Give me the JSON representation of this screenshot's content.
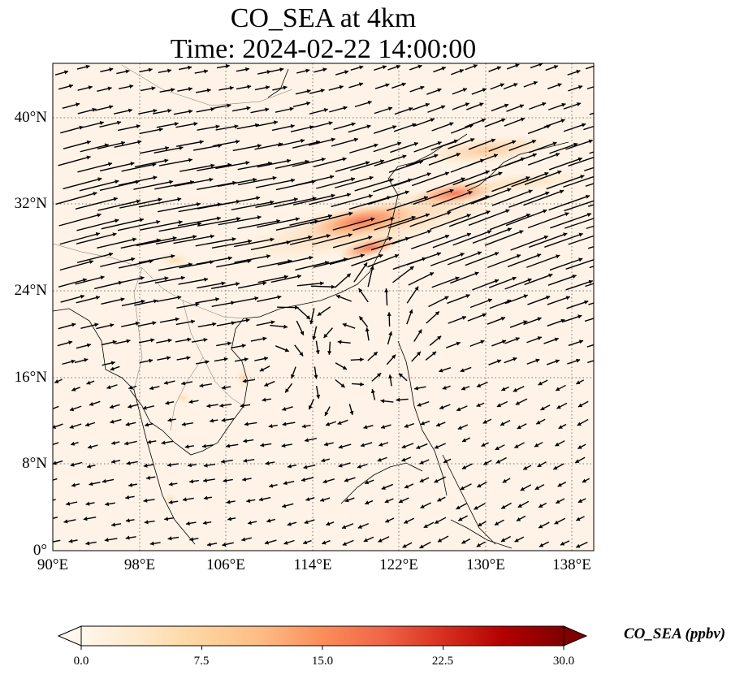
{
  "title": {
    "line1": "CO_SEA at 4km",
    "line2": "Time: 2024-02-22 14:00:00"
  },
  "axes": {
    "lon_range": [
      90,
      140
    ],
    "lat_range": [
      0,
      45
    ],
    "x_ticks": [
      "90°E",
      "98°E",
      "106°E",
      "114°E",
      "122°E",
      "130°E",
      "138°E"
    ],
    "y_ticks": [
      "0°",
      "8°N",
      "16°N",
      "24°N",
      "32°N",
      "40°N"
    ],
    "gridline_style": "dotted"
  },
  "colorbar": {
    "label": "CO_SEA (ppbv)",
    "ticks": [
      "0.0",
      "7.5",
      "15.0",
      "22.5",
      "30.0"
    ],
    "range": [
      0,
      30
    ],
    "colormap": "OrRd",
    "colors": [
      "#fff7ec",
      "#fee8c8",
      "#fdd49e",
      "#fdbb84",
      "#fc8d59",
      "#ef6548",
      "#d7301f",
      "#b30000",
      "#7f0000"
    ],
    "extend": "both"
  },
  "map": {
    "layer": "CO_SEA concentration with wind vectors",
    "background_color": "#fef3e6",
    "coastline_color": "#000000",
    "vector_color": "#000000"
  }
}
